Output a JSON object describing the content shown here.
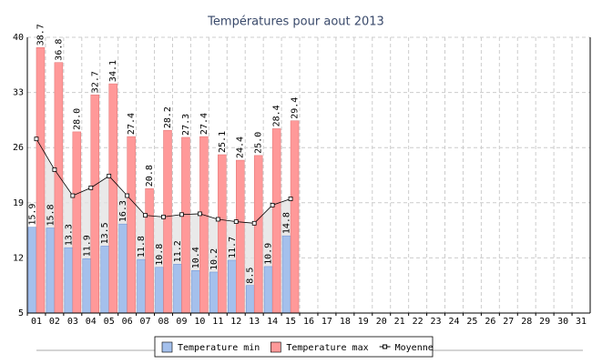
{
  "chart_data": {
    "type": "bar",
    "title": "Températures pour aout 2013",
    "categories": [
      "01",
      "02",
      "03",
      "04",
      "05",
      "06",
      "07",
      "08",
      "09",
      "10",
      "11",
      "12",
      "13",
      "14",
      "15",
      "16",
      "17",
      "18",
      "19",
      "20",
      "21",
      "22",
      "23",
      "24",
      "25",
      "26",
      "27",
      "28",
      "29",
      "30",
      "31"
    ],
    "series": [
      {
        "name": "Temperature min",
        "color": "#a4c0ec",
        "values": [
          15.9,
          15.8,
          13.3,
          11.9,
          13.5,
          16.3,
          11.8,
          10.8,
          11.2,
          10.4,
          10.2,
          11.7,
          8.5,
          10.9,
          14.8,
          null,
          null,
          null,
          null,
          null,
          null,
          null,
          null,
          null,
          null,
          null,
          null,
          null,
          null,
          null,
          null
        ],
        "value_labels": [
          "15.9",
          "15.8",
          "13.3",
          "11.9",
          "13.5",
          "16.3",
          "11.8",
          "10.8",
          "11.2",
          "10.4",
          "10.2",
          "11.7",
          "8.5",
          "10.9",
          "14.8",
          null,
          null,
          null,
          null,
          null,
          null,
          null,
          null,
          null,
          null,
          null,
          null,
          null,
          null,
          null,
          null
        ]
      },
      {
        "name": "Temperature max",
        "color": "#ff9999",
        "values": [
          38.7,
          36.8,
          28,
          32.7,
          34.1,
          27.4,
          20.8,
          28.2,
          27.3,
          27.4,
          25.1,
          24.4,
          25,
          28.4,
          29.4,
          null,
          null,
          null,
          null,
          null,
          null,
          null,
          null,
          null,
          null,
          null,
          null,
          null,
          null,
          null,
          null
        ],
        "value_labels": [
          "38.7",
          "36.8",
          "28.0",
          "32.7",
          "34.1",
          "27.4",
          "20.8",
          "28.2",
          "27.3",
          "27.4",
          "25.1",
          "24.4",
          "25.0",
          "28.4",
          "29.4",
          null,
          null,
          null,
          null,
          null,
          null,
          null,
          null,
          null,
          null,
          null,
          null,
          null,
          null,
          null,
          null
        ]
      },
      {
        "name": "Moyenne",
        "type": "line",
        "color": "#000000",
        "values": [
          27.1,
          23.2,
          19.9,
          20.9,
          22.4,
          19.9,
          17.4,
          17.2,
          17.5,
          17.6,
          16.9,
          16.6,
          16.4,
          18.7,
          19.5,
          null,
          null,
          null,
          null,
          null,
          null,
          null,
          null,
          null,
          null,
          null,
          null,
          null,
          null,
          null,
          null
        ]
      }
    ],
    "ylim": [
      5,
      40
    ],
    "yticks": [
      5,
      12,
      19,
      26,
      33,
      40
    ],
    "grid": true,
    "legend": "bottom"
  }
}
